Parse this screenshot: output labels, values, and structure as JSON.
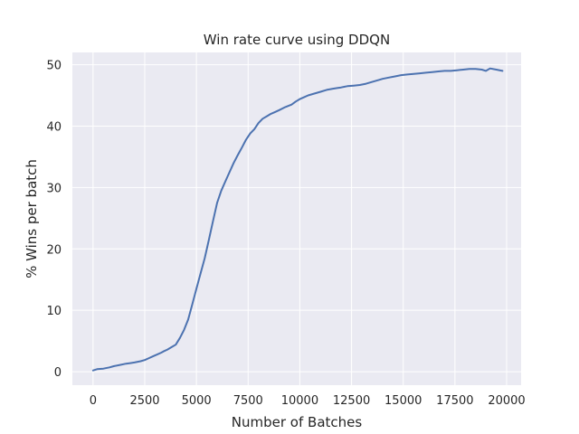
{
  "chart_data": {
    "type": "line",
    "title": "Win rate curve using DDQN",
    "xlabel": "Number of Batches",
    "ylabel": "% Wins per batch",
    "xlim": [
      -1000,
      20700
    ],
    "ylim": [
      -2.2,
      52
    ],
    "xticks": [
      0,
      2500,
      5000,
      7500,
      10000,
      12500,
      15000,
      17500,
      20000
    ],
    "yticks": [
      0,
      10,
      20,
      30,
      40,
      50
    ],
    "grid": true,
    "colors": {
      "background": "#eaeaf2",
      "grid": "#ffffff",
      "line": "#4c72b0"
    },
    "series": [
      {
        "x": [
          0,
          200,
          500,
          800,
          1000,
          1300,
          1600,
          1800,
          2000,
          2300,
          2500,
          2700,
          2900,
          3100,
          3300,
          3400,
          3600,
          3800,
          4000,
          4200,
          4400,
          4600,
          4800,
          5000,
          5200,
          5400,
          5600,
          5800,
          6000,
          6200,
          6400,
          6600,
          6800,
          7000,
          7200,
          7400,
          7600,
          7800,
          8000,
          8200,
          8400,
          8600,
          8800,
          9000,
          9300,
          9600,
          9800,
          10000,
          10200,
          10400,
          10700,
          11000,
          11300,
          11600,
          11800,
          12000,
          12300,
          12600,
          12900,
          13200,
          13500,
          13800,
          14000,
          14300,
          14600,
          14900,
          15200,
          15500,
          15800,
          16100,
          16400,
          16700,
          17000,
          17300,
          17600,
          17900,
          18200,
          18500,
          18800,
          19000,
          19200,
          19500,
          19800
        ],
        "values": [
          0.2,
          0.4,
          0.5,
          0.7,
          0.9,
          1.1,
          1.3,
          1.4,
          1.5,
          1.7,
          1.9,
          2.2,
          2.5,
          2.8,
          3.1,
          3.3,
          3.6,
          4.0,
          4.4,
          5.5,
          6.8,
          8.5,
          11.0,
          13.5,
          16.0,
          18.5,
          21.5,
          24.5,
          27.5,
          29.5,
          31.0,
          32.5,
          34.0,
          35.3,
          36.5,
          37.8,
          38.8,
          39.5,
          40.5,
          41.2,
          41.6,
          42.0,
          42.3,
          42.6,
          43.1,
          43.5,
          44.0,
          44.4,
          44.7,
          45.0,
          45.3,
          45.6,
          45.9,
          46.1,
          46.2,
          46.3,
          46.5,
          46.6,
          46.7,
          46.9,
          47.2,
          47.5,
          47.7,
          47.9,
          48.1,
          48.3,
          48.4,
          48.5,
          48.6,
          48.7,
          48.8,
          48.9,
          49.0,
          49.0,
          49.1,
          49.2,
          49.3,
          49.3,
          49.2,
          49.0,
          49.4,
          49.2,
          49.0
        ]
      }
    ]
  }
}
